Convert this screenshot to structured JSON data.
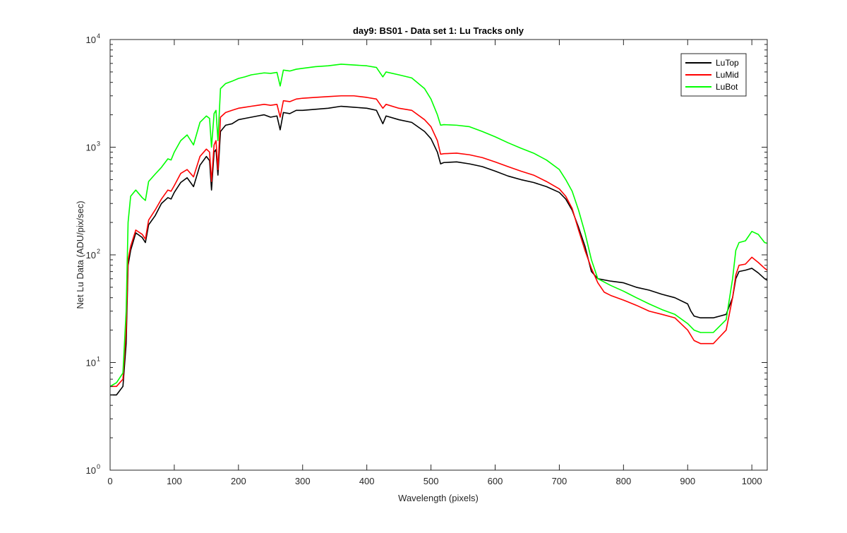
{
  "chart_data": {
    "type": "line",
    "title": "day9: BS01 - Data set 1: Lu Tracks only",
    "xlabel": "Wavelength (pixels)",
    "ylabel": "Net Lu Data (ADU/pix/sec)",
    "xlim": [
      0,
      1024
    ],
    "ylim": [
      1,
      10000
    ],
    "yscale": "log",
    "xticks": [
      0,
      100,
      200,
      300,
      400,
      500,
      600,
      700,
      800,
      900,
      1000
    ],
    "yticks": [
      {
        "value": 1,
        "base": "10",
        "exp": "0"
      },
      {
        "value": 10,
        "base": "10",
        "exp": "1"
      },
      {
        "value": 100,
        "base": "10",
        "exp": "2"
      },
      {
        "value": 1000,
        "base": "10",
        "exp": "3"
      },
      {
        "value": 10000,
        "base": "10",
        "exp": "4"
      }
    ],
    "grid": false,
    "legend_position": "top-right",
    "series": [
      {
        "name": "LuTop",
        "color": "#000000",
        "points": [
          [
            0,
            5
          ],
          [
            10,
            5
          ],
          [
            20,
            6
          ],
          [
            25,
            15
          ],
          [
            28,
            80
          ],
          [
            32,
            110
          ],
          [
            40,
            160
          ],
          [
            50,
            145
          ],
          [
            55,
            130
          ],
          [
            60,
            190
          ],
          [
            70,
            230
          ],
          [
            80,
            300
          ],
          [
            90,
            340
          ],
          [
            95,
            330
          ],
          [
            100,
            380
          ],
          [
            110,
            470
          ],
          [
            120,
            520
          ],
          [
            130,
            430
          ],
          [
            140,
            680
          ],
          [
            150,
            820
          ],
          [
            155,
            750
          ],
          [
            158,
            400
          ],
          [
            162,
            900
          ],
          [
            165,
            950
          ],
          [
            168,
            550
          ],
          [
            172,
            1400
          ],
          [
            180,
            1600
          ],
          [
            190,
            1650
          ],
          [
            200,
            1800
          ],
          [
            210,
            1850
          ],
          [
            220,
            1900
          ],
          [
            230,
            1950
          ],
          [
            240,
            2000
          ],
          [
            250,
            1900
          ],
          [
            260,
            1950
          ],
          [
            265,
            1450
          ],
          [
            270,
            2100
          ],
          [
            280,
            2050
          ],
          [
            290,
            2200
          ],
          [
            300,
            2200
          ],
          [
            320,
            2250
          ],
          [
            340,
            2300
          ],
          [
            360,
            2400
          ],
          [
            380,
            2350
          ],
          [
            400,
            2300
          ],
          [
            415,
            2200
          ],
          [
            425,
            1650
          ],
          [
            430,
            1950
          ],
          [
            450,
            1800
          ],
          [
            470,
            1700
          ],
          [
            490,
            1400
          ],
          [
            500,
            1200
          ],
          [
            510,
            900
          ],
          [
            515,
            700
          ],
          [
            520,
            720
          ],
          [
            540,
            730
          ],
          [
            560,
            700
          ],
          [
            580,
            660
          ],
          [
            600,
            600
          ],
          [
            620,
            540
          ],
          [
            640,
            500
          ],
          [
            660,
            470
          ],
          [
            680,
            430
          ],
          [
            700,
            380
          ],
          [
            710,
            330
          ],
          [
            720,
            260
          ],
          [
            730,
            180
          ],
          [
            740,
            120
          ],
          [
            750,
            70
          ],
          [
            760,
            60
          ],
          [
            780,
            57
          ],
          [
            800,
            55
          ],
          [
            820,
            50
          ],
          [
            840,
            47
          ],
          [
            860,
            43
          ],
          [
            880,
            40
          ],
          [
            900,
            35
          ],
          [
            905,
            30
          ],
          [
            910,
            27
          ],
          [
            920,
            26
          ],
          [
            940,
            26
          ],
          [
            960,
            28
          ],
          [
            970,
            40
          ],
          [
            975,
            60
          ],
          [
            980,
            70
          ],
          [
            990,
            72
          ],
          [
            1000,
            75
          ],
          [
            1010,
            68
          ],
          [
            1020,
            60
          ],
          [
            1024,
            58
          ]
        ]
      },
      {
        "name": "LuMid",
        "color": "#ff0000",
        "points": [
          [
            0,
            6
          ],
          [
            10,
            6
          ],
          [
            20,
            7
          ],
          [
            25,
            20
          ],
          [
            28,
            90
          ],
          [
            32,
            120
          ],
          [
            40,
            170
          ],
          [
            50,
            155
          ],
          [
            55,
            140
          ],
          [
            60,
            210
          ],
          [
            70,
            260
          ],
          [
            80,
            330
          ],
          [
            90,
            400
          ],
          [
            95,
            390
          ],
          [
            100,
            440
          ],
          [
            110,
            570
          ],
          [
            120,
            620
          ],
          [
            130,
            530
          ],
          [
            140,
            820
          ],
          [
            150,
            960
          ],
          [
            155,
            900
          ],
          [
            158,
            480
          ],
          [
            162,
            1050
          ],
          [
            165,
            1150
          ],
          [
            168,
            620
          ],
          [
            172,
            1900
          ],
          [
            180,
            2100
          ],
          [
            190,
            2200
          ],
          [
            200,
            2300
          ],
          [
            210,
            2350
          ],
          [
            220,
            2400
          ],
          [
            230,
            2450
          ],
          [
            240,
            2500
          ],
          [
            250,
            2450
          ],
          [
            260,
            2500
          ],
          [
            265,
            1900
          ],
          [
            270,
            2700
          ],
          [
            280,
            2650
          ],
          [
            290,
            2800
          ],
          [
            300,
            2850
          ],
          [
            320,
            2900
          ],
          [
            340,
            2950
          ],
          [
            360,
            3000
          ],
          [
            380,
            3000
          ],
          [
            400,
            2900
          ],
          [
            415,
            2800
          ],
          [
            425,
            2300
          ],
          [
            430,
            2500
          ],
          [
            450,
            2300
          ],
          [
            470,
            2200
          ],
          [
            490,
            1800
          ],
          [
            500,
            1550
          ],
          [
            510,
            1150
          ],
          [
            515,
            860
          ],
          [
            520,
            870
          ],
          [
            540,
            880
          ],
          [
            560,
            850
          ],
          [
            580,
            800
          ],
          [
            600,
            730
          ],
          [
            620,
            660
          ],
          [
            640,
            600
          ],
          [
            660,
            550
          ],
          [
            680,
            480
          ],
          [
            700,
            410
          ],
          [
            710,
            350
          ],
          [
            720,
            270
          ],
          [
            730,
            170
          ],
          [
            740,
            110
          ],
          [
            750,
            75
          ],
          [
            760,
            55
          ],
          [
            770,
            45
          ],
          [
            780,
            42
          ],
          [
            800,
            38
          ],
          [
            820,
            34
          ],
          [
            840,
            30
          ],
          [
            860,
            28
          ],
          [
            880,
            26
          ],
          [
            900,
            20
          ],
          [
            910,
            16
          ],
          [
            920,
            15
          ],
          [
            940,
            15
          ],
          [
            960,
            20
          ],
          [
            970,
            40
          ],
          [
            975,
            65
          ],
          [
            980,
            80
          ],
          [
            990,
            82
          ],
          [
            1000,
            95
          ],
          [
            1010,
            85
          ],
          [
            1020,
            75
          ],
          [
            1024,
            72
          ]
        ]
      },
      {
        "name": "LuBot",
        "color": "#00ff00",
        "points": [
          [
            0,
            6
          ],
          [
            10,
            6.5
          ],
          [
            20,
            8
          ],
          [
            25,
            30
          ],
          [
            28,
            200
          ],
          [
            32,
            350
          ],
          [
            40,
            400
          ],
          [
            50,
            340
          ],
          [
            55,
            320
          ],
          [
            60,
            480
          ],
          [
            70,
            560
          ],
          [
            80,
            650
          ],
          [
            90,
            780
          ],
          [
            95,
            760
          ],
          [
            100,
            900
          ],
          [
            110,
            1150
          ],
          [
            120,
            1300
          ],
          [
            130,
            1050
          ],
          [
            140,
            1700
          ],
          [
            150,
            1950
          ],
          [
            155,
            1850
          ],
          [
            158,
            1000
          ],
          [
            162,
            2050
          ],
          [
            165,
            2200
          ],
          [
            168,
            1150
          ],
          [
            172,
            3500
          ],
          [
            180,
            3900
          ],
          [
            190,
            4100
          ],
          [
            200,
            4350
          ],
          [
            210,
            4500
          ],
          [
            220,
            4700
          ],
          [
            230,
            4800
          ],
          [
            240,
            4900
          ],
          [
            250,
            4850
          ],
          [
            260,
            4950
          ],
          [
            265,
            3700
          ],
          [
            270,
            5200
          ],
          [
            280,
            5100
          ],
          [
            290,
            5300
          ],
          [
            300,
            5400
          ],
          [
            320,
            5600
          ],
          [
            340,
            5700
          ],
          [
            360,
            5900
          ],
          [
            380,
            5800
          ],
          [
            400,
            5700
          ],
          [
            415,
            5500
          ],
          [
            425,
            4500
          ],
          [
            430,
            5000
          ],
          [
            450,
            4700
          ],
          [
            470,
            4400
          ],
          [
            490,
            3500
          ],
          [
            500,
            2800
          ],
          [
            510,
            2000
          ],
          [
            515,
            1600
          ],
          [
            520,
            1620
          ],
          [
            540,
            1600
          ],
          [
            560,
            1550
          ],
          [
            580,
            1400
          ],
          [
            600,
            1250
          ],
          [
            620,
            1100
          ],
          [
            640,
            980
          ],
          [
            660,
            880
          ],
          [
            680,
            760
          ],
          [
            700,
            620
          ],
          [
            710,
            500
          ],
          [
            720,
            390
          ],
          [
            730,
            260
          ],
          [
            740,
            160
          ],
          [
            750,
            90
          ],
          [
            760,
            60
          ],
          [
            780,
            52
          ],
          [
            800,
            46
          ],
          [
            820,
            40
          ],
          [
            840,
            35
          ],
          [
            860,
            31
          ],
          [
            880,
            28
          ],
          [
            900,
            23
          ],
          [
            910,
            20
          ],
          [
            920,
            19
          ],
          [
            940,
            19
          ],
          [
            960,
            25
          ],
          [
            970,
            60
          ],
          [
            975,
            110
          ],
          [
            980,
            130
          ],
          [
            990,
            135
          ],
          [
            1000,
            165
          ],
          [
            1010,
            155
          ],
          [
            1020,
            130
          ],
          [
            1024,
            128
          ]
        ]
      }
    ]
  }
}
